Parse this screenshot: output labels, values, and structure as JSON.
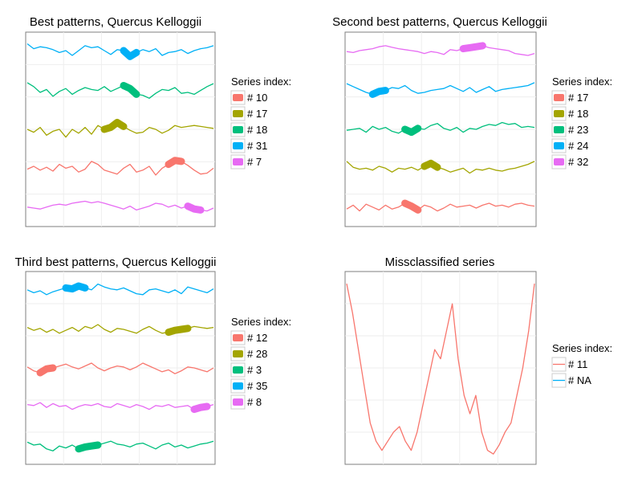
{
  "chart_data": [
    {
      "type": "line",
      "title": "Best patterns, Quercus Kelloggii",
      "legend_title": "Series index:",
      "legend_position": "right",
      "grid": true,
      "series": [
        {
          "name": "# 10",
          "color": "#F8766D",
          "row": 4,
          "values": [
            0.45,
            0.6,
            0.4,
            0.55,
            0.35,
            0.7,
            0.5,
            0.6,
            0.3,
            0.45,
            0.85,
            0.7,
            0.4,
            0.3,
            0.2,
            0.5,
            0.7,
            0.3,
            0.4,
            0.6,
            0.15,
            0.5,
            0.7,
            0.9,
            0.85,
            0.65,
            0.4,
            0.2,
            0.25,
            0.5
          ],
          "highlight": [
            22,
            24
          ]
        },
        {
          "name": "# 17",
          "color": "#A3A500",
          "row": 3,
          "values": [
            0.5,
            0.35,
            0.6,
            0.2,
            0.4,
            0.5,
            0.1,
            0.5,
            0.3,
            0.6,
            0.25,
            0.7,
            0.5,
            0.6,
            0.85,
            0.65,
            0.45,
            0.3,
            0.35,
            0.6,
            0.5,
            0.3,
            0.45,
            0.7,
            0.6,
            0.65,
            0.7,
            0.65,
            0.6,
            0.55
          ],
          "highlight": [
            12,
            15
          ]
        },
        {
          "name": "# 18",
          "color": "#00BF7D",
          "row": 2,
          "values": [
            0.9,
            0.7,
            0.4,
            0.55,
            0.2,
            0.45,
            0.6,
            0.3,
            0.5,
            0.65,
            0.55,
            0.5,
            0.7,
            0.45,
            0.6,
            0.75,
            0.6,
            0.3,
            0.25,
            0.1,
            0.35,
            0.55,
            0.5,
            0.65,
            0.35,
            0.4,
            0.3,
            0.5,
            0.7,
            0.85
          ],
          "highlight": [
            15,
            17
          ]
        },
        {
          "name": "# 31",
          "color": "#00B0F6",
          "row": 1,
          "values": [
            0.9,
            0.65,
            0.75,
            0.7,
            0.6,
            0.45,
            0.55,
            0.3,
            0.55,
            0.8,
            0.7,
            0.75,
            0.55,
            0.35,
            0.6,
            0.55,
            0.25,
            0.45,
            0.6,
            0.5,
            0.65,
            0.3,
            0.45,
            0.5,
            0.6,
            0.4,
            0.55,
            0.65,
            0.7,
            0.8
          ],
          "highlight": [
            15,
            17
          ]
        },
        {
          "name": "# 7",
          "color": "#E76BF3",
          "row": 5,
          "values": [
            0.5,
            0.45,
            0.4,
            0.5,
            0.6,
            0.65,
            0.6,
            0.7,
            0.75,
            0.8,
            0.72,
            0.78,
            0.7,
            0.6,
            0.5,
            0.4,
            0.55,
            0.35,
            0.45,
            0.55,
            0.7,
            0.65,
            0.5,
            0.6,
            0.45,
            0.55,
            0.4,
            0.35,
            0.3,
            0.45
          ],
          "highlight": [
            25,
            27
          ]
        }
      ]
    },
    {
      "type": "line",
      "title": "Second best patterns, Quercus Kelloggii",
      "legend_title": "Series index:",
      "legend_position": "right",
      "grid": true,
      "series": [
        {
          "name": "# 17",
          "color": "#F8766D",
          "row": 5,
          "values": [
            0.4,
            0.6,
            0.3,
            0.65,
            0.5,
            0.35,
            0.6,
            0.4,
            0.5,
            0.7,
            0.55,
            0.35,
            0.6,
            0.5,
            0.3,
            0.45,
            0.65,
            0.5,
            0.55,
            0.6,
            0.45,
            0.6,
            0.7,
            0.55,
            0.6,
            0.5,
            0.65,
            0.7,
            0.6,
            0.55
          ],
          "highlight": [
            9,
            11
          ]
        },
        {
          "name": "# 18",
          "color": "#A3A500",
          "row": 4,
          "values": [
            0.85,
            0.55,
            0.45,
            0.5,
            0.4,
            0.6,
            0.5,
            0.3,
            0.5,
            0.45,
            0.55,
            0.4,
            0.6,
            0.75,
            0.55,
            0.45,
            0.3,
            0.4,
            0.5,
            0.25,
            0.45,
            0.4,
            0.5,
            0.4,
            0.35,
            0.45,
            0.5,
            0.6,
            0.7,
            0.85
          ],
          "highlight": [
            12,
            14
          ]
        },
        {
          "name": "# 23",
          "color": "#00BF7D",
          "row": 3,
          "values": [
            0.45,
            0.5,
            0.55,
            0.35,
            0.65,
            0.5,
            0.6,
            0.4,
            0.3,
            0.5,
            0.35,
            0.55,
            0.5,
            0.7,
            0.8,
            0.55,
            0.45,
            0.6,
            0.35,
            0.55,
            0.5,
            0.65,
            0.75,
            0.7,
            0.85,
            0.75,
            0.8,
            0.6,
            0.65,
            0.6
          ],
          "highlight": [
            9,
            11
          ]
        },
        {
          "name": "# 24",
          "color": "#00B0F6",
          "row": 2,
          "values": [
            0.85,
            0.7,
            0.55,
            0.4,
            0.3,
            0.45,
            0.5,
            0.65,
            0.6,
            0.75,
            0.5,
            0.35,
            0.4,
            0.5,
            0.55,
            0.6,
            0.75,
            0.6,
            0.45,
            0.65,
            0.4,
            0.55,
            0.7,
            0.45,
            0.55,
            0.6,
            0.65,
            0.7,
            0.75,
            0.9
          ],
          "highlight": [
            4,
            6
          ]
        },
        {
          "name": "# 32",
          "color": "#E76BF3",
          "row": 1,
          "values": [
            0.5,
            0.45,
            0.55,
            0.6,
            0.65,
            0.75,
            0.8,
            0.72,
            0.65,
            0.6,
            0.55,
            0.5,
            0.4,
            0.5,
            0.45,
            0.35,
            0.6,
            0.55,
            0.65,
            0.7,
            0.75,
            0.8,
            0.7,
            0.65,
            0.6,
            0.55,
            0.4,
            0.35,
            0.3,
            0.4
          ],
          "highlight": [
            18,
            21
          ]
        }
      ]
    },
    {
      "type": "line",
      "title": "Third best patterns, Quercus Kelloggii",
      "legend_title": "Series index:",
      "legend_position": "right",
      "grid": true,
      "series": [
        {
          "name": "# 12",
          "color": "#F8766D",
          "row": 3,
          "values": [
            0.55,
            0.35,
            0.25,
            0.45,
            0.5,
            0.6,
            0.7,
            0.55,
            0.45,
            0.6,
            0.75,
            0.5,
            0.35,
            0.5,
            0.6,
            0.55,
            0.4,
            0.55,
            0.75,
            0.6,
            0.45,
            0.3,
            0.4,
            0.2,
            0.35,
            0.55,
            0.5,
            0.4,
            0.3,
            0.5
          ],
          "highlight": [
            2,
            4
          ]
        },
        {
          "name": "# 28",
          "color": "#A3A500",
          "row": 2,
          "values": [
            0.6,
            0.45,
            0.55,
            0.35,
            0.5,
            0.3,
            0.45,
            0.6,
            0.4,
            0.65,
            0.55,
            0.75,
            0.5,
            0.35,
            0.55,
            0.5,
            0.4,
            0.3,
            0.5,
            0.65,
            0.45,
            0.3,
            0.35,
            0.45,
            0.5,
            0.55,
            0.65,
            0.6,
            0.55,
            0.6
          ],
          "highlight": [
            22,
            25
          ]
        },
        {
          "name": "# 3",
          "color": "#00BF7D",
          "row": 5,
          "values": [
            0.65,
            0.5,
            0.55,
            0.3,
            0.2,
            0.45,
            0.35,
            0.5,
            0.3,
            0.4,
            0.45,
            0.5,
            0.6,
            0.7,
            0.55,
            0.5,
            0.4,
            0.55,
            0.6,
            0.45,
            0.3,
            0.5,
            0.6,
            0.4,
            0.5,
            0.35,
            0.45,
            0.55,
            0.6,
            0.7
          ],
          "highlight": [
            8,
            11
          ]
        },
        {
          "name": "# 35",
          "color": "#00B0F6",
          "row": 1,
          "values": [
            0.55,
            0.4,
            0.5,
            0.3,
            0.45,
            0.55,
            0.65,
            0.6,
            0.75,
            0.65,
            0.55,
            0.85,
            0.7,
            0.6,
            0.55,
            0.65,
            0.5,
            0.35,
            0.3,
            0.55,
            0.6,
            0.5,
            0.4,
            0.55,
            0.35,
            0.7,
            0.6,
            0.5,
            0.4,
            0.6
          ],
          "highlight": [
            6,
            9
          ]
        },
        {
          "name": "# 8",
          "color": "#E76BF3",
          "row": 4,
          "values": [
            0.6,
            0.55,
            0.7,
            0.45,
            0.65,
            0.5,
            0.55,
            0.35,
            0.5,
            0.6,
            0.55,
            0.65,
            0.5,
            0.45,
            0.65,
            0.55,
            0.45,
            0.6,
            0.5,
            0.35,
            0.55,
            0.5,
            0.6,
            0.45,
            0.5,
            0.55,
            0.35,
            0.45,
            0.5,
            0.6
          ],
          "highlight": [
            26,
            28
          ]
        }
      ]
    },
    {
      "type": "line",
      "title": "Missclassified series",
      "legend_title": "Series index:",
      "legend_position": "right",
      "grid": true,
      "legend": [
        {
          "name": "# 11",
          "color": "#F8766D"
        },
        {
          "name": "# NA",
          "color": "#00B0F6"
        }
      ],
      "series": [
        {
          "name": "# 11",
          "color": "#F8766D",
          "values": [
            0.96,
            0.8,
            0.6,
            0.4,
            0.2,
            0.1,
            0.05,
            0.1,
            0.15,
            0.18,
            0.1,
            0.05,
            0.15,
            0.3,
            0.45,
            0.6,
            0.55,
            0.7,
            0.85,
            0.55,
            0.35,
            0.25,
            0.35,
            0.15,
            0.05,
            0.03,
            0.08,
            0.15,
            0.2,
            0.35,
            0.5,
            0.7,
            0.96
          ]
        }
      ]
    }
  ]
}
